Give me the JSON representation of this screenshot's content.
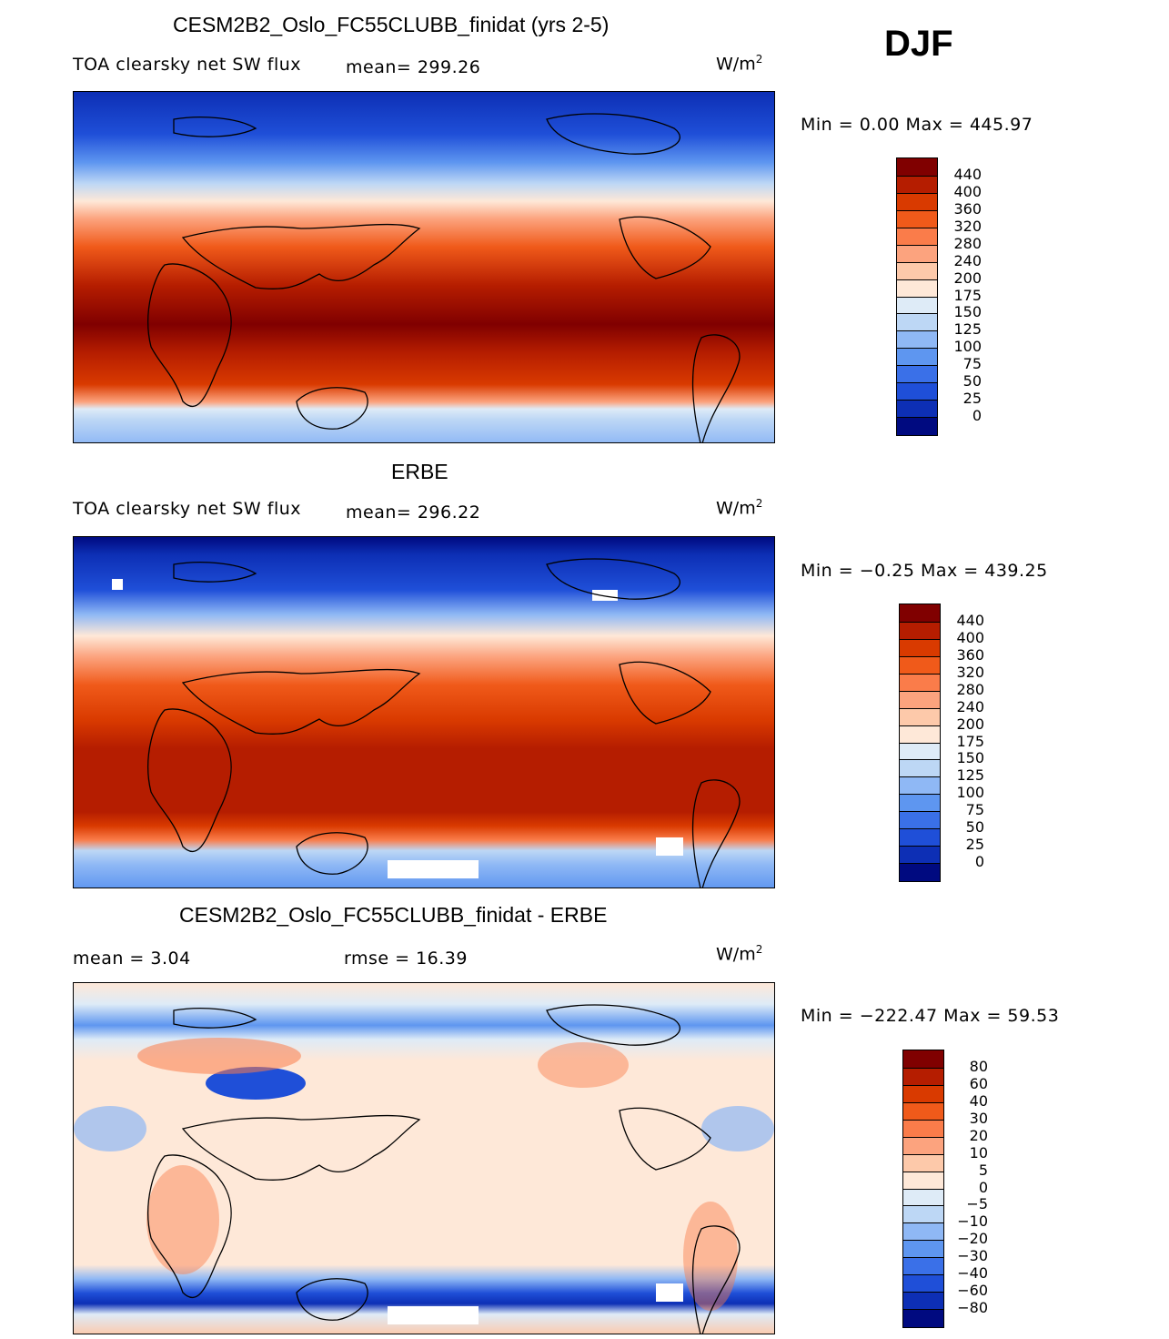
{
  "season": "DJF",
  "panels": [
    {
      "title": "CESM2B2_Oslo_FC55CLUBB_finidat (yrs 2-5)",
      "variable": "TOA clearsky net SW flux",
      "stat": "mean= 299.26",
      "units": "W/m",
      "units_exp": "2",
      "minmax": "Min =    0.00 Max = 445.97",
      "legend": {
        "labels": [
          "440",
          "400",
          "360",
          "320",
          "280",
          "240",
          "200",
          "175",
          "150",
          "125",
          "100",
          "75",
          "50",
          "25",
          "0"
        ],
        "colors": [
          "#800000",
          "#b51d00",
          "#d93a00",
          "#f05a1a",
          "#fa7c4a",
          "#fca37e",
          "#fdc9aa",
          "#fee8d8",
          "#deebf7",
          "#bdd7f5",
          "#8fb8f5",
          "#5e96f0",
          "#3a70e8",
          "#1f4fd8",
          "#0d2fb5",
          "#000a80"
        ]
      }
    },
    {
      "title": "ERBE",
      "variable": "TOA clearsky net SW flux",
      "stat": "mean= 296.22",
      "units": "W/m",
      "units_exp": "2",
      "minmax": "Min =  −0.25 Max = 439.25",
      "legend": {
        "labels": [
          "440",
          "400",
          "360",
          "320",
          "280",
          "240",
          "200",
          "175",
          "150",
          "125",
          "100",
          "75",
          "50",
          "25",
          "0"
        ],
        "colors": [
          "#800000",
          "#b51d00",
          "#d93a00",
          "#f05a1a",
          "#fa7c4a",
          "#fca37e",
          "#fdc9aa",
          "#fee8d8",
          "#deebf7",
          "#bdd7f5",
          "#8fb8f5",
          "#5e96f0",
          "#3a70e8",
          "#1f4fd8",
          "#0d2fb5",
          "#000a80"
        ]
      }
    },
    {
      "title": "CESM2B2_Oslo_FC55CLUBB_finidat - ERBE",
      "stat_mean": "mean =    3.04",
      "stat_rmse": "rmse =   16.39",
      "units": "W/m",
      "units_exp": "2",
      "minmax": "Min = −222.47 Max =  59.53",
      "legend": {
        "labels": [
          "80",
          "60",
          "40",
          "30",
          "20",
          "10",
          "5",
          "0",
          "−5",
          "−10",
          "−20",
          "−30",
          "−40",
          "−60",
          "−80"
        ],
        "colors": [
          "#800000",
          "#b51d00",
          "#d93a00",
          "#f05a1a",
          "#fa7c4a",
          "#fca37e",
          "#fdc9aa",
          "#fee8d8",
          "#deebf7",
          "#bdd7f5",
          "#8fb8f5",
          "#5e96f0",
          "#3a70e8",
          "#1f4fd8",
          "#0d2fb5",
          "#000a80"
        ]
      }
    }
  ]
}
